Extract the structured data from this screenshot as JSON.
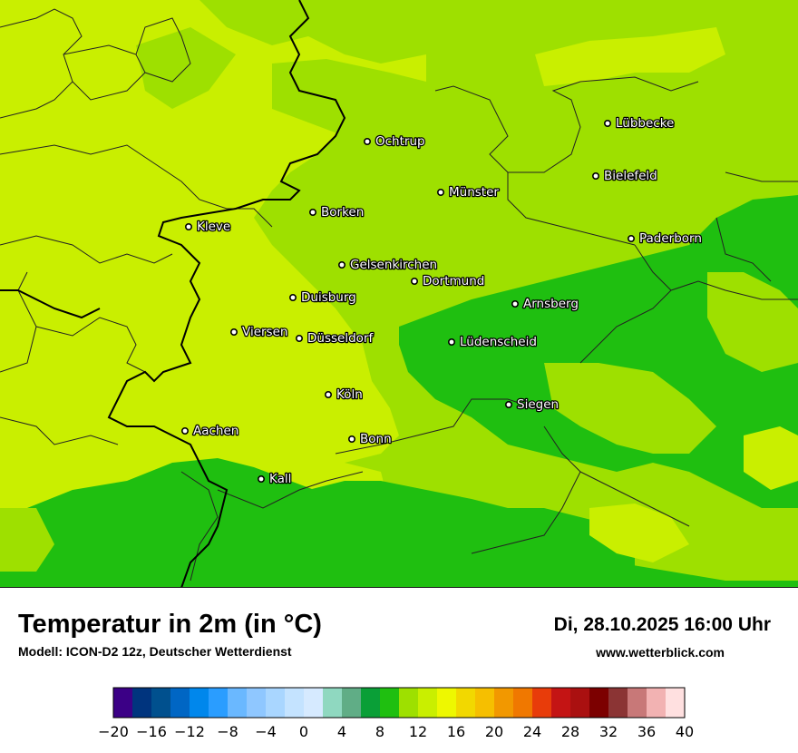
{
  "title": "Temperatur in 2m (in °C)",
  "subtitle": "Modell: ICON-D2 12z, Deutscher Wetterdienst",
  "datetime": "Di, 28.10.2025 16:00 Uhr",
  "website": "www.wetterblick.com",
  "colors": {
    "t10": "#9ee000",
    "t12": "#c9ef00",
    "t8": "#1fbf10",
    "t14": "#d8f400",
    "border": "#000000",
    "district": "#222222"
  },
  "cities": [
    {
      "name": "Lübbecke"
    },
    {
      "name": "Ochtrup"
    },
    {
      "name": "Bielefeld"
    },
    {
      "name": "Münster"
    },
    {
      "name": "Borken"
    },
    {
      "name": "Kleve"
    },
    {
      "name": "Paderborn"
    },
    {
      "name": "Gelsenkirchen"
    },
    {
      "name": "Dortmund"
    },
    {
      "name": "Duisburg"
    },
    {
      "name": "Arnsberg"
    },
    {
      "name": "Viersen"
    },
    {
      "name": "Düsseldorf"
    },
    {
      "name": "Lüdenscheid"
    },
    {
      "name": "Köln"
    },
    {
      "name": "Siegen"
    },
    {
      "name": "Aachen"
    },
    {
      "name": "Bonn"
    },
    {
      "name": "Kall"
    }
  ],
  "legend": {
    "colors": [
      "#3b0086",
      "#00347e",
      "#00508e",
      "#0066c4",
      "#0087ec",
      "#2a9dff",
      "#6ab8ff",
      "#8fc7ff",
      "#a9d6ff",
      "#c4e3ff",
      "#d6eaff",
      "#8fd8c0",
      "#60ad86",
      "#0a9f37",
      "#1fbf10",
      "#9ee000",
      "#c9ef00",
      "#eef800",
      "#f2d800",
      "#f6bf00",
      "#f29800",
      "#f07800",
      "#e83c0a",
      "#c41414",
      "#aa1010",
      "#7c0000",
      "#8b3434",
      "#c87878",
      "#f2b2b2",
      "#ffe0e0"
    ],
    "ticks": [
      "−20",
      "−16",
      "−12",
      "−8",
      "−4",
      "0",
      "4",
      "8",
      "12",
      "16",
      "20",
      "24",
      "28",
      "32",
      "36",
      "40"
    ]
  }
}
